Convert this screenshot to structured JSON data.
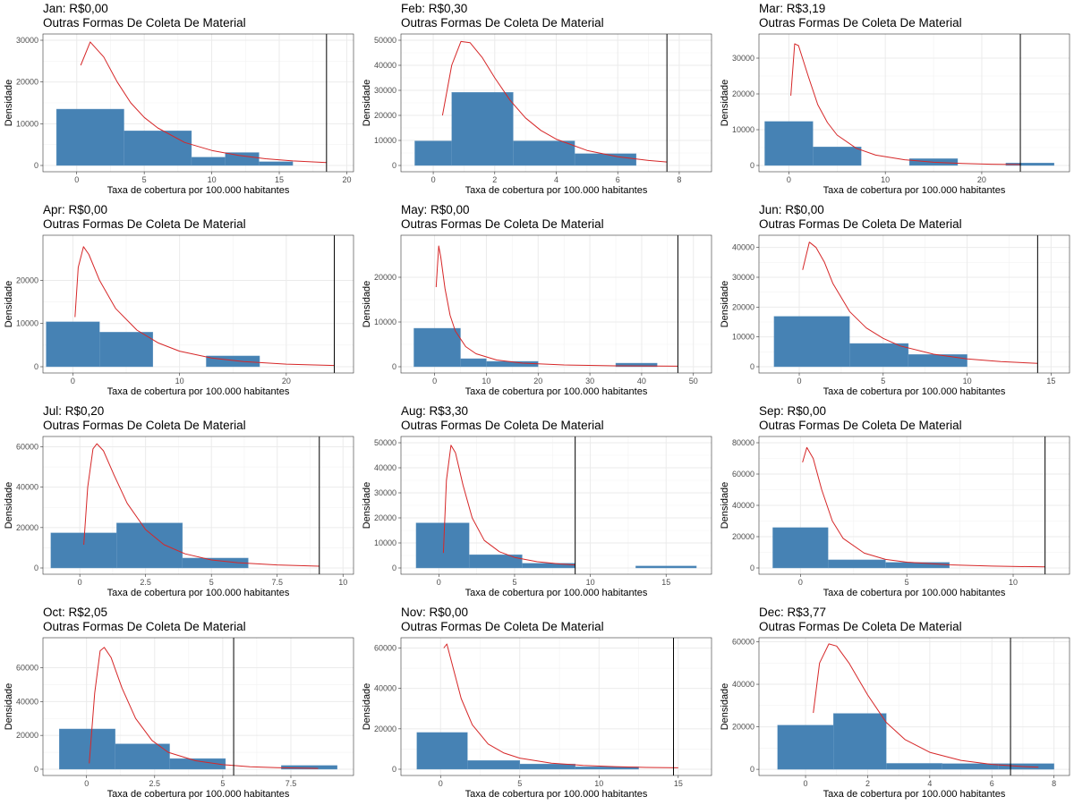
{
  "chart_data": [
    {
      "type": "bar",
      "title": "Jan: R$0,00",
      "subtitle": "Outras Formas De Coleta De Material",
      "xlabel": "Taxa de cobertura por 100.000 habitantes",
      "ylabel": "Densidade",
      "xlim": [
        -2.5,
        20.5
      ],
      "ylim": [
        -1500,
        31500
      ],
      "xticks": [
        0,
        5,
        10,
        15,
        20
      ],
      "xtick_labels": [
        "0",
        "5",
        "10",
        "15",
        "20"
      ],
      "yticks": [
        0,
        10000,
        20000,
        30000
      ],
      "ytick_labels": [
        "0",
        "10000",
        "20000",
        "30000"
      ],
      "bars": [
        [
          -1.5,
          3.5,
          13500
        ],
        [
          3.5,
          8.5,
          8300
        ],
        [
          8.5,
          11,
          2000
        ],
        [
          11,
          13.5,
          3100
        ],
        [
          13.5,
          16,
          900
        ]
      ],
      "vline": 18.5,
      "curve": [
        [
          0.3,
          24000
        ],
        [
          1,
          29600
        ],
        [
          2,
          26000
        ],
        [
          3,
          20000
        ],
        [
          4,
          15000
        ],
        [
          5,
          11500
        ],
        [
          6,
          9000
        ],
        [
          8,
          5500
        ],
        [
          10,
          3600
        ],
        [
          12,
          2400
        ],
        [
          14,
          1600
        ],
        [
          16,
          1100
        ],
        [
          18.5,
          700
        ]
      ]
    },
    {
      "type": "bar",
      "title": "Feb: R$0,30",
      "subtitle": "Outras Formas De Coleta De Material",
      "xlabel": "Taxa de cobertura por 100.000 habitantes",
      "ylabel": "Densidade",
      "xlim": [
        -1.05,
        9.05
      ],
      "ylim": [
        -2500,
        52500
      ],
      "xticks": [
        0,
        2,
        4,
        6,
        8
      ],
      "xtick_labels": [
        "0",
        "2",
        "4",
        "6",
        "8"
      ],
      "yticks": [
        0,
        10000,
        20000,
        30000,
        40000,
        50000
      ],
      "ytick_labels": [
        "0",
        "10000",
        "20000",
        "30000",
        "40000",
        "50000"
      ],
      "bars": [
        [
          -0.6,
          0.6,
          9800
        ],
        [
          0.6,
          2.6,
          29200
        ],
        [
          2.6,
          4.6,
          9800
        ],
        [
          4.6,
          6.6,
          4700
        ]
      ],
      "vline": 7.6,
      "curve": [
        [
          0.3,
          20000
        ],
        [
          0.6,
          40000
        ],
        [
          0.9,
          49500
        ],
        [
          1.2,
          49000
        ],
        [
          1.6,
          43000
        ],
        [
          2,
          35000
        ],
        [
          2.5,
          26000
        ],
        [
          3,
          19000
        ],
        [
          3.5,
          14000
        ],
        [
          4,
          10500
        ],
        [
          5,
          6000
        ],
        [
          6,
          3500
        ],
        [
          7,
          2000
        ],
        [
          7.6,
          1400
        ]
      ]
    },
    {
      "type": "bar",
      "title": "Mar: R$3,19",
      "subtitle": "Outras Formas De Coleta De Material",
      "xlabel": "Taxa de cobertura por 100.000 habitantes",
      "ylabel": "Densidade",
      "xlim": [
        -3.1,
        29.1
      ],
      "ylim": [
        -1750,
        36750
      ],
      "xticks": [
        0,
        10,
        20
      ],
      "xtick_labels": [
        "0",
        "10",
        "20"
      ],
      "yticks": [
        0,
        10000,
        20000,
        30000
      ],
      "ytick_labels": [
        "0",
        "10000",
        "20000",
        "30000"
      ],
      "bars": [
        [
          -2.5,
          2.5,
          12300
        ],
        [
          2.5,
          7.5,
          5200
        ],
        [
          12.5,
          17.5,
          1900
        ],
        [
          22.5,
          27.5,
          700
        ]
      ],
      "vline": 24,
      "curve": [
        [
          0.2,
          19500
        ],
        [
          0.6,
          34000
        ],
        [
          1,
          33500
        ],
        [
          2,
          25000
        ],
        [
          3,
          17000
        ],
        [
          4,
          12000
        ],
        [
          5,
          8500
        ],
        [
          7,
          4800
        ],
        [
          9,
          2900
        ],
        [
          12,
          1600
        ],
        [
          15,
          900
        ],
        [
          18,
          550
        ],
        [
          21,
          350
        ],
        [
          24,
          250
        ]
      ]
    },
    {
      "type": "bar",
      "title": "Apr: R$0,00",
      "subtitle": "Outras Formas De Coleta De Material",
      "xlabel": "Taxa de cobertura por 100.000 habitantes",
      "ylabel": "Densidade",
      "xlim": [
        -2.8,
        26.3
      ],
      "ylim": [
        -1450,
        30450
      ],
      "xticks": [
        0,
        10,
        20
      ],
      "xtick_labels": [
        "0",
        "10",
        "20"
      ],
      "yticks": [
        0,
        10000,
        20000
      ],
      "ytick_labels": [
        "0",
        "10000",
        "20000"
      ],
      "bars": [
        [
          -2.5,
          2.5,
          10400
        ],
        [
          2.5,
          7.5,
          8000
        ],
        [
          12.5,
          17.5,
          2500
        ]
      ],
      "vline": 24.5,
      "curve": [
        [
          0.2,
          11500
        ],
        [
          0.5,
          23000
        ],
        [
          1,
          27800
        ],
        [
          1.5,
          26000
        ],
        [
          2.5,
          20000
        ],
        [
          4,
          13500
        ],
        [
          6,
          8500
        ],
        [
          8,
          5500
        ],
        [
          10,
          3600
        ],
        [
          13,
          2000
        ],
        [
          16,
          1200
        ],
        [
          20,
          600
        ],
        [
          24.5,
          300
        ]
      ]
    },
    {
      "type": "bar",
      "title": "May: R$0,00",
      "subtitle": "Outras Formas De Coleta De Material",
      "xlabel": "Taxa de cobertura por 100.000 habitantes",
      "ylabel": "Densidade",
      "xlim": [
        -6.5,
        53.5
      ],
      "ylim": [
        -1400,
        29400
      ],
      "xticks": [
        0,
        10,
        20,
        30,
        40,
        50
      ],
      "xtick_labels": [
        "0",
        "10",
        "20",
        "30",
        "40",
        "50"
      ],
      "yticks": [
        0,
        10000,
        20000
      ],
      "ytick_labels": [
        "0",
        "10000",
        "20000"
      ],
      "bars": [
        [
          -4,
          5,
          8600
        ],
        [
          5,
          10,
          1800
        ],
        [
          10,
          20,
          1200
        ],
        [
          35,
          43,
          800
        ]
      ],
      "vline": 47,
      "curve": [
        [
          0.3,
          17800
        ],
        [
          0.8,
          27000
        ],
        [
          1.2,
          24500
        ],
        [
          2,
          17500
        ],
        [
          3,
          11500
        ],
        [
          4,
          8000
        ],
        [
          6,
          4500
        ],
        [
          8,
          2900
        ],
        [
          12,
          1500
        ],
        [
          17,
          800
        ],
        [
          25,
          400
        ],
        [
          35,
          200
        ],
        [
          47,
          120
        ]
      ]
    },
    {
      "type": "bar",
      "title": "Jun: R$0,00",
      "subtitle": "Outras Formas De Coleta De Material",
      "xlabel": "Taxa de cobertura por 100.000 habitantes",
      "ylabel": "Densidade",
      "xlim": [
        -2.4,
        16.1
      ],
      "ylim": [
        -2100,
        44100
      ],
      "xticks": [
        0,
        5,
        10,
        15
      ],
      "xtick_labels": [
        "0",
        "5",
        "10",
        "15"
      ],
      "yticks": [
        0,
        10000,
        20000,
        30000,
        40000
      ],
      "ytick_labels": [
        "0",
        "10000",
        "20000",
        "30000",
        "40000"
      ],
      "bars": [
        [
          -1.5,
          3,
          16900
        ],
        [
          3,
          6.5,
          7800
        ],
        [
          6.5,
          10,
          4100
        ]
      ],
      "vline": 14.2,
      "curve": [
        [
          0.2,
          32500
        ],
        [
          0.6,
          41800
        ],
        [
          1,
          40000
        ],
        [
          1.5,
          35000
        ],
        [
          2,
          28000
        ],
        [
          3,
          18500
        ],
        [
          4,
          13000
        ],
        [
          5,
          9500
        ],
        [
          6,
          7000
        ],
        [
          8,
          4200
        ],
        [
          10,
          2600
        ],
        [
          12,
          1700
        ],
        [
          14.2,
          1100
        ]
      ]
    },
    {
      "type": "bar",
      "title": "Jul: R$0,20",
      "subtitle": "Outras Formas De Coleta De Material",
      "xlabel": "Taxa de cobertura por 100.000 habitantes",
      "ylabel": "Densidade",
      "xlim": [
        -1.4,
        10.4
      ],
      "ylim": [
        -3100,
        65100
      ],
      "xticks": [
        0,
        2.5,
        5,
        7.5,
        10
      ],
      "xtick_labels": [
        "0",
        "2.5",
        "5",
        "7.5",
        "10"
      ],
      "yticks": [
        0,
        20000,
        40000,
        60000
      ],
      "ytick_labels": [
        "0",
        "20000",
        "40000",
        "60000"
      ],
      "bars": [
        [
          -1.1,
          1.4,
          17400
        ],
        [
          1.4,
          3.9,
          22300
        ],
        [
          3.9,
          6.4,
          4900
        ]
      ],
      "vline": 9.1,
      "curve": [
        [
          0.15,
          11500
        ],
        [
          0.3,
          40000
        ],
        [
          0.5,
          59000
        ],
        [
          0.65,
          61500
        ],
        [
          0.9,
          58000
        ],
        [
          1.3,
          46000
        ],
        [
          1.8,
          32000
        ],
        [
          2.5,
          19000
        ],
        [
          3.2,
          11500
        ],
        [
          4,
          7000
        ],
        [
          5,
          4000
        ],
        [
          6,
          2600
        ],
        [
          7.5,
          1500
        ],
        [
          9.1,
          900
        ]
      ]
    },
    {
      "type": "bar",
      "title": "Aug: R$3,30",
      "subtitle": "Outras Formas De Coleta De Material",
      "xlabel": "Taxa de cobertura por 100.000 habitantes",
      "ylabel": "Densidade",
      "xlim": [
        -2.5,
        18
      ],
      "ylim": [
        -2500,
        52500
      ],
      "xticks": [
        0,
        5,
        10,
        15
      ],
      "xtick_labels": [
        "0",
        "5",
        "10",
        "15"
      ],
      "yticks": [
        0,
        10000,
        20000,
        30000,
        40000,
        50000
      ],
      "ytick_labels": [
        "0",
        "10000",
        "20000",
        "30000",
        "40000",
        "50000"
      ],
      "bars": [
        [
          -1.5,
          2,
          18000
        ],
        [
          2,
          5.5,
          5300
        ],
        [
          5.5,
          9,
          1900
        ],
        [
          13,
          17,
          800
        ]
      ],
      "vline": 9,
      "curve": [
        [
          0.3,
          6000
        ],
        [
          0.5,
          35000
        ],
        [
          0.8,
          49000
        ],
        [
          1.1,
          46000
        ],
        [
          1.6,
          33000
        ],
        [
          2.2,
          20000
        ],
        [
          3,
          11000
        ],
        [
          4,
          6500
        ],
        [
          5,
          4200
        ],
        [
          6.5,
          2500
        ],
        [
          8,
          1600
        ],
        [
          9,
          1200
        ]
      ]
    },
    {
      "type": "bar",
      "title": "Sep: R$0,00",
      "subtitle": "Outras Formas De Coleta De Material",
      "xlabel": "Taxa de cobertura por 100.000 habitantes",
      "ylabel": "Densidade",
      "xlim": [
        -1.95,
        12.65
      ],
      "ylim": [
        -4000,
        84000
      ],
      "xticks": [
        0,
        5,
        10
      ],
      "xtick_labels": [
        "0",
        "5",
        "10"
      ],
      "yticks": [
        0,
        20000,
        40000,
        60000,
        80000
      ],
      "ytick_labels": [
        "0",
        "20000",
        "40000",
        "60000",
        "80000"
      ],
      "bars": [
        [
          -1.3,
          1.3,
          25800
        ],
        [
          1.3,
          4,
          5200
        ],
        [
          4,
          7,
          3600
        ]
      ],
      "vline": 11.5,
      "curve": [
        [
          0.1,
          67500
        ],
        [
          0.3,
          77000
        ],
        [
          0.6,
          70000
        ],
        [
          1,
          50000
        ],
        [
          1.5,
          30000
        ],
        [
          2,
          19000
        ],
        [
          3,
          9500
        ],
        [
          4,
          5500
        ],
        [
          5,
          3700
        ],
        [
          7,
          2000
        ],
        [
          9,
          1200
        ],
        [
          11.5,
          700
        ]
      ]
    },
    {
      "type": "bar",
      "title": "Oct: R$2,05",
      "subtitle": "Outras Formas De Coleta De Material",
      "xlabel": "Taxa de cobertura por 100.000 habitantes",
      "ylabel": "Densidade",
      "xlim": [
        -1.6,
        9.8
      ],
      "ylim": [
        -3700,
        77700
      ],
      "xticks": [
        0,
        2.5,
        5,
        7.5
      ],
      "xtick_labels": [
        "0",
        "2.5",
        "5",
        "7.5"
      ],
      "yticks": [
        0,
        20000,
        40000,
        60000
      ],
      "ytick_labels": [
        "0",
        "20000",
        "40000",
        "60000"
      ],
      "bars": [
        [
          -1.0,
          1.05,
          23800
        ],
        [
          1.05,
          3.05,
          15000
        ],
        [
          3.05,
          5.1,
          6300
        ],
        [
          7.15,
          9.2,
          2200
        ]
      ],
      "vline": 5.4,
      "curve": [
        [
          0.1,
          3500
        ],
        [
          0.3,
          45000
        ],
        [
          0.5,
          70000
        ],
        [
          0.65,
          72000
        ],
        [
          0.9,
          66000
        ],
        [
          1.3,
          48000
        ],
        [
          1.8,
          30000
        ],
        [
          2.4,
          17000
        ],
        [
          3,
          10000
        ],
        [
          4,
          5000
        ],
        [
          5,
          2700
        ],
        [
          6,
          1500
        ],
        [
          7,
          900
        ],
        [
          8.5,
          500
        ]
      ]
    },
    {
      "type": "bar",
      "title": "Nov: R$0,00",
      "subtitle": "Outras Formas De Coleta De Material",
      "xlabel": "Taxa de cobertura por 100.000 habitantes",
      "ylabel": "Densidade",
      "xlim": [
        -2.5,
        17.1
      ],
      "ylim": [
        -3100,
        65100
      ],
      "xticks": [
        0,
        5,
        10,
        15
      ],
      "xtick_labels": [
        "0",
        "5",
        "10",
        "15"
      ],
      "yticks": [
        0,
        20000,
        40000,
        60000
      ],
      "ytick_labels": [
        "0",
        "20000",
        "40000",
        "60000"
      ],
      "bars": [
        [
          -1.5,
          1.7,
          18200
        ],
        [
          1.7,
          5,
          4300
        ],
        [
          5,
          8.5,
          2600
        ],
        [
          8.5,
          12.5,
          1200
        ]
      ],
      "vline": 14.7,
      "curve": [
        [
          0.2,
          60000
        ],
        [
          0.4,
          62000
        ],
        [
          0.8,
          50000
        ],
        [
          1.3,
          35000
        ],
        [
          2,
          22000
        ],
        [
          3,
          12500
        ],
        [
          4,
          8000
        ],
        [
          5,
          5500
        ],
        [
          7,
          3000
        ],
        [
          9,
          1900
        ],
        [
          11,
          1300
        ],
        [
          13,
          900
        ],
        [
          15,
          700
        ]
      ]
    },
    {
      "type": "bar",
      "title": "Dec: R$3,77",
      "subtitle": "Outras Formas De Coleta De Material",
      "xlabel": "Taxa de cobertura por 100.000 habitantes",
      "ylabel": "Densidade",
      "xlim": [
        -1.5,
        8.5
      ],
      "ylim": [
        -2900,
        61900
      ],
      "xticks": [
        0,
        2,
        4,
        6,
        8
      ],
      "xtick_labels": [
        "0",
        "2",
        "4",
        "6",
        "8"
      ],
      "yticks": [
        0,
        20000,
        40000,
        60000
      ],
      "ytick_labels": [
        "0",
        "20000",
        "40000",
        "60000"
      ],
      "bars": [
        [
          -0.9,
          0.9,
          20800
        ],
        [
          0.9,
          2.6,
          26300
        ],
        [
          2.6,
          4.4,
          2800
        ],
        [
          4.4,
          6.2,
          2700
        ],
        [
          6.2,
          8,
          2700
        ]
      ],
      "vline": 6.6,
      "curve": [
        [
          0.25,
          26500
        ],
        [
          0.45,
          50000
        ],
        [
          0.75,
          59000
        ],
        [
          1,
          58000
        ],
        [
          1.4,
          50000
        ],
        [
          2,
          35000
        ],
        [
          2.6,
          22000
        ],
        [
          3.2,
          14000
        ],
        [
          4,
          8000
        ],
        [
          5,
          4200
        ],
        [
          6,
          2300
        ],
        [
          7,
          1300
        ],
        [
          7.5,
          1000
        ]
      ]
    }
  ]
}
